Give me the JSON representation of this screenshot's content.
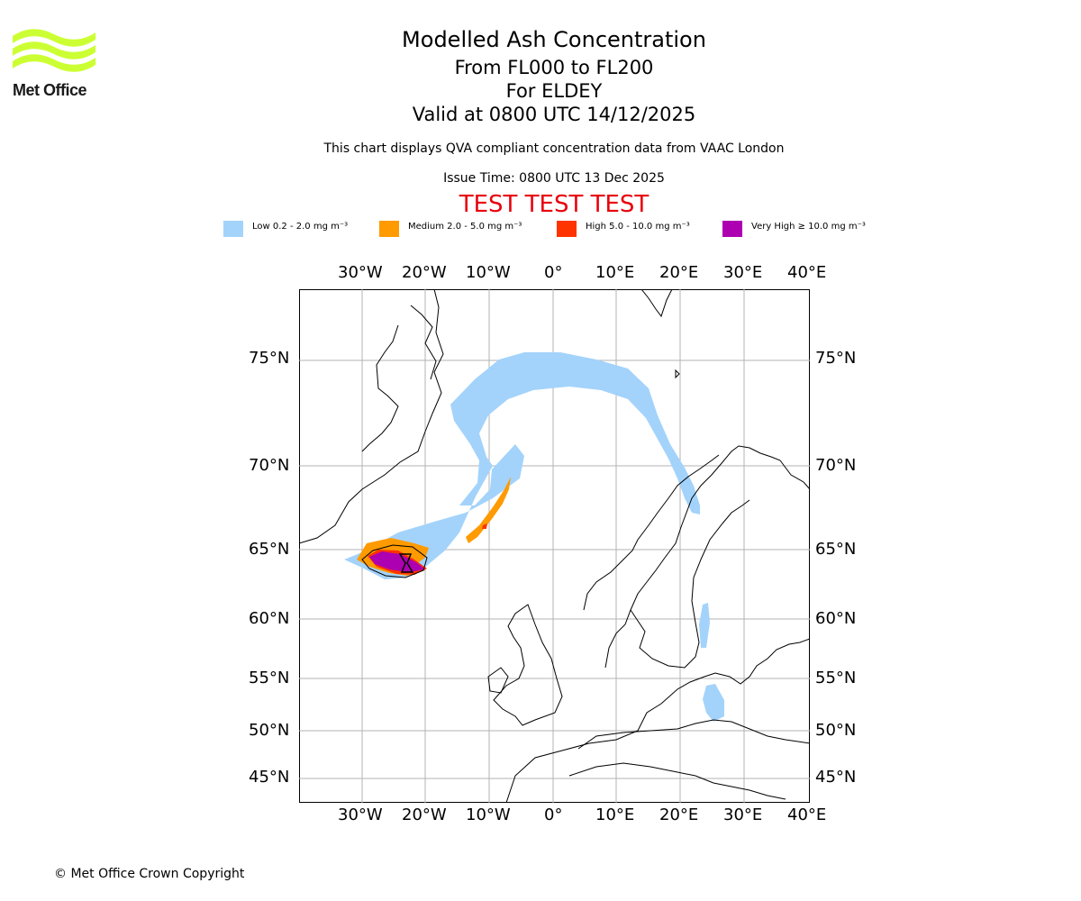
{
  "logo": {
    "text": "Met Office",
    "color": "#ccff33"
  },
  "title": {
    "main": "Modelled Ash Concentration",
    "levels": "From FL000 to FL200",
    "location": "For ELDEY",
    "valid": "Valid at 0800 UTC 14/12/2025",
    "description": "This chart displays QVA compliant concentration data from VAAC London",
    "issue": "Issue Time: 0800 UTC 13 Dec 2025",
    "test": "TEST TEST TEST"
  },
  "legend": [
    {
      "label": "Low 0.2 - 2.0 mg m⁻³",
      "color": "#a3d3fb"
    },
    {
      "label": "Medium 2.0 - 5.0 mg m⁻³",
      "color": "#ff9a00"
    },
    {
      "label": "High 5.0 - 10.0 mg m⁻³",
      "color": "#ff3300"
    },
    {
      "label": "Very High ≥ 10.0 mg m⁻³",
      "color": "#ad00b0"
    }
  ],
  "map": {
    "lon_labels": [
      "30°W",
      "20°W",
      "10°W",
      "0°",
      "10°E",
      "20°E",
      "30°E",
      "40°E"
    ],
    "lat_labels": [
      "75°N",
      "70°N",
      "65°N",
      "60°N",
      "55°N",
      "50°N",
      "45°N"
    ],
    "grid_color": "#b3b3b3"
  },
  "copyright": "© Met Office Crown Copyright"
}
